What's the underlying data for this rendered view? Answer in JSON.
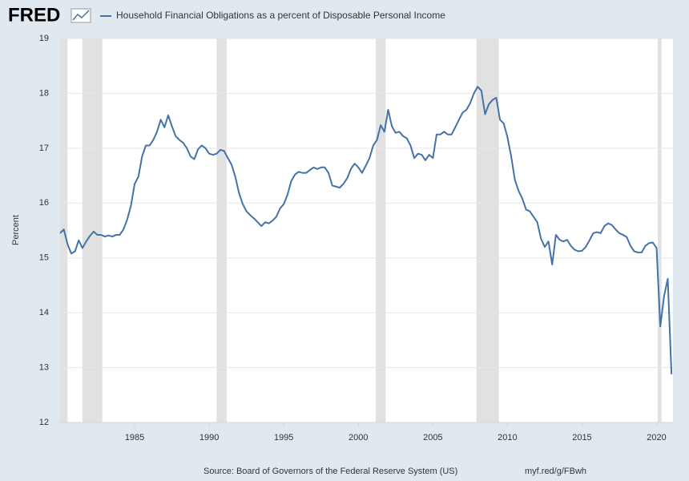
{
  "logo": "FRED",
  "chart_data": {
    "type": "line",
    "x": [
      1980,
      1980.25,
      1980.5,
      1980.75,
      1981,
      1981.25,
      1981.5,
      1981.75,
      1982,
      1982.25,
      1982.5,
      1982.75,
      1983,
      1983.25,
      1983.5,
      1983.75,
      1984,
      1984.25,
      1984.5,
      1984.75,
      1985,
      1985.25,
      1985.5,
      1985.75,
      1986,
      1986.25,
      1986.5,
      1986.75,
      1987,
      1987.25,
      1987.5,
      1987.75,
      1988,
      1988.25,
      1988.5,
      1988.75,
      1989,
      1989.25,
      1989.5,
      1989.75,
      1990,
      1990.25,
      1990.5,
      1990.75,
      1991,
      1991.25,
      1991.5,
      1991.75,
      1992,
      1992.25,
      1992.5,
      1992.75,
      1993,
      1993.25,
      1993.5,
      1993.75,
      1994,
      1994.25,
      1994.5,
      1994.75,
      1995,
      1995.25,
      1995.5,
      1995.75,
      1996,
      1996.25,
      1996.5,
      1996.75,
      1997,
      1997.25,
      1997.5,
      1997.75,
      1998,
      1998.25,
      1998.5,
      1998.75,
      1999,
      1999.25,
      1999.5,
      1999.75,
      2000,
      2000.25,
      2000.5,
      2000.75,
      2001,
      2001.25,
      2001.5,
      2001.75,
      2002,
      2002.25,
      2002.5,
      2002.75,
      2003,
      2003.25,
      2003.5,
      2003.75,
      2004,
      2004.25,
      2004.5,
      2004.75,
      2005,
      2005.25,
      2005.5,
      2005.75,
      2006,
      2006.25,
      2006.5,
      2006.75,
      2007,
      2007.25,
      2007.5,
      2007.75,
      2008,
      2008.25,
      2008.5,
      2008.75,
      2009,
      2009.25,
      2009.5,
      2009.75,
      2010,
      2010.25,
      2010.5,
      2010.75,
      2011,
      2011.25,
      2011.5,
      2011.75,
      2012,
      2012.25,
      2012.5,
      2012.75,
      2013,
      2013.25,
      2013.5,
      2013.75,
      2014,
      2014.25,
      2014.5,
      2014.75,
      2015,
      2015.25,
      2015.5,
      2015.75,
      2016,
      2016.25,
      2016.5,
      2016.75,
      2017,
      2017.25,
      2017.5,
      2017.75,
      2018,
      2018.25,
      2018.5,
      2018.75,
      2019,
      2019.25,
      2019.5,
      2019.75,
      2020,
      2020.25,
      2020.5,
      2020.75,
      2021
    ],
    "series": [
      {
        "name": "Household Financial Obligations as a percent of Disposable Personal Income",
        "color": "#4572a7",
        "values": [
          15.45,
          15.52,
          15.25,
          15.08,
          15.12,
          15.32,
          15.18,
          15.3,
          15.4,
          15.48,
          15.42,
          15.42,
          15.39,
          15.41,
          15.39,
          15.42,
          15.42,
          15.52,
          15.7,
          15.95,
          16.35,
          16.48,
          16.85,
          17.05,
          17.05,
          17.15,
          17.3,
          17.52,
          17.38,
          17.6,
          17.4,
          17.22,
          17.15,
          17.1,
          17.0,
          16.85,
          16.8,
          16.98,
          17.05,
          17.0,
          16.9,
          16.88,
          16.9,
          16.97,
          16.95,
          16.82,
          16.7,
          16.48,
          16.18,
          15.98,
          15.85,
          15.78,
          15.72,
          15.65,
          15.58,
          15.65,
          15.63,
          15.68,
          15.75,
          15.9,
          15.98,
          16.15,
          16.4,
          16.52,
          16.57,
          16.55,
          16.55,
          16.6,
          16.65,
          16.62,
          16.65,
          16.65,
          16.55,
          16.32,
          16.3,
          16.28,
          16.35,
          16.45,
          16.62,
          16.72,
          16.65,
          16.55,
          16.68,
          16.82,
          17.05,
          17.15,
          17.42,
          17.3,
          17.7,
          17.4,
          17.28,
          17.3,
          17.22,
          17.18,
          17.05,
          16.82,
          16.9,
          16.88,
          16.78,
          16.88,
          16.82,
          17.25,
          17.25,
          17.3,
          17.25,
          17.25,
          17.38,
          17.52,
          17.65,
          17.7,
          17.82,
          18.0,
          18.12,
          18.05,
          17.62,
          17.8,
          17.88,
          17.92,
          17.52,
          17.45,
          17.2,
          16.85,
          16.42,
          16.22,
          16.08,
          15.88,
          15.85,
          15.75,
          15.65,
          15.35,
          15.2,
          15.3,
          14.88,
          15.42,
          15.33,
          15.3,
          15.33,
          15.22,
          15.15,
          15.12,
          15.13,
          15.2,
          15.32,
          15.45,
          15.47,
          15.45,
          15.58,
          15.63,
          15.6,
          15.52,
          15.45,
          15.42,
          15.38,
          15.22,
          15.12,
          15.1,
          15.1,
          15.22,
          15.27,
          15.28,
          15.18,
          13.75,
          14.3,
          14.62,
          12.88
        ]
      }
    ],
    "ylabel": "Percent",
    "xlim": [
      1980,
      2021.1
    ],
    "ylim": [
      12,
      19
    ],
    "xticks": [
      1985,
      1990,
      1995,
      2000,
      2005,
      2010,
      2015,
      2020
    ],
    "yticks": [
      12,
      13,
      14,
      15,
      16,
      17,
      18,
      19
    ],
    "grid": true,
    "recessions": [
      [
        1980.0,
        1980.5
      ],
      [
        1981.5,
        1982.83
      ],
      [
        1990.5,
        1991.17
      ],
      [
        2001.17,
        2001.83
      ],
      [
        2007.92,
        2009.42
      ],
      [
        2020.08,
        2020.33
      ]
    ],
    "source": "Source: Board of Governors of the Federal Reserve System (US)",
    "link": "myf.red/g/FBwh"
  }
}
